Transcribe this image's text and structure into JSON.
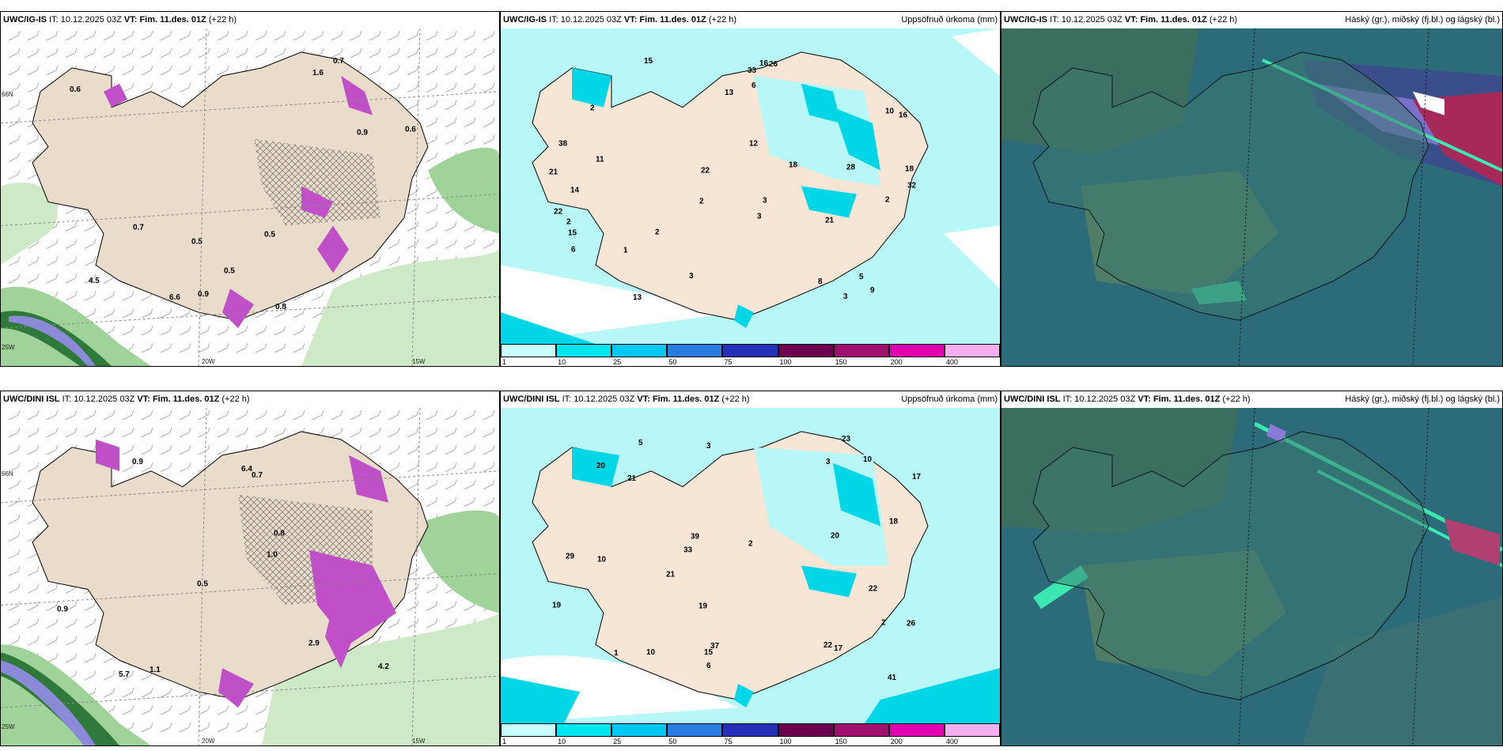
{
  "rows": [
    {
      "model": "UWC/IG-IS",
      "it_label": "IT:",
      "it": "10.12.2025 03Z",
      "vt_label": "VT:",
      "vt": "Fim. 11.des. 01Z",
      "lead": "(+22 h)"
    },
    {
      "model": "UWC/DINI ISL",
      "it_label": "IT:",
      "it": "10.12.2025 03Z",
      "vt_label": "VT:",
      "vt": "Fim. 11.des. 01Z",
      "lead": "(+22 h)"
    }
  ],
  "precip_title": "Uppsöfnuð úrkoma (mm)",
  "cloud_title": "Háský (gr.), miðský (fj.bl.) og lágský (bl.)",
  "axis": {
    "lat": "66N",
    "lon20": "20W",
    "lon15": "15W",
    "lon25": "25W"
  },
  "colorbar": {
    "labels": [
      "1",
      "10",
      "25",
      "50",
      "75",
      "100",
      "150",
      "200",
      "400"
    ],
    "colors": [
      "#c8ffff",
      "#00e6ee",
      "#00c8f0",
      "#2a7de0",
      "#2430b8",
      "#6e0050",
      "#a0106e",
      "#e000b0",
      "#f4b0ee"
    ]
  },
  "snow_values_top": [
    "0.6",
    "6.6",
    "0.7",
    "4.5",
    "0.5",
    "0.6",
    "0.5",
    "0.5",
    "0.7",
    "1.6",
    "0.9",
    "0.8",
    "0.9"
  ],
  "snow_values_bottom": [
    "0.5",
    "5.7",
    "6.4",
    "2.9",
    "0.9",
    "4.2",
    "0.7",
    "1.0",
    "0.9",
    "1.1",
    "0.8"
  ],
  "precip_values_top": [
    "3",
    "2",
    "2",
    "2",
    "3",
    "22",
    "32",
    "6",
    "3",
    "21",
    "12",
    "11",
    "18",
    "16",
    "21",
    "16",
    "13",
    "33",
    "38",
    "26",
    "14",
    "6",
    "15",
    "10",
    "5",
    "28",
    "22",
    "13",
    "3",
    "2",
    "15",
    "9",
    "8",
    "18",
    "2",
    "1"
  ],
  "precip_values_bottom": [
    "6",
    "3",
    "3",
    "33",
    "37",
    "15",
    "10",
    "17",
    "22",
    "21",
    "20",
    "19",
    "23",
    "22",
    "39",
    "41",
    "29",
    "20",
    "18",
    "19",
    "17",
    "10",
    "26",
    "10",
    "2",
    "5",
    "21",
    "2",
    "1"
  ]
}
